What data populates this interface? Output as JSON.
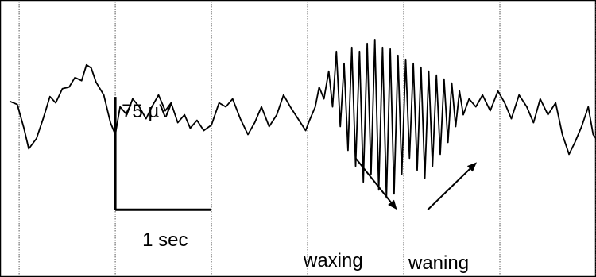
{
  "chart_data": {
    "type": "line",
    "title": "",
    "xlabel": "",
    "ylabel": "",
    "grid": "vertical dotted lines, one per second",
    "colors": {
      "trace": "#000000",
      "grid": "#555555",
      "frame": "#000000"
    },
    "x_units": "sec",
    "y_units": "µV",
    "xlim": [
      -1.1,
      5.0
    ],
    "ylim": [
      -210,
      140
    ],
    "time_per_grid": 1,
    "scale_bar": {
      "amplitude_label": "75 µV",
      "amplitude_value": 75,
      "time_label": "1 sec",
      "time_value": 1
    },
    "annotations": [
      {
        "text": "waxing",
        "arrow_from": [
          2.5,
          -60
        ],
        "arrow_to": [
          2.93,
          -125
        ]
      },
      {
        "text": "waning",
        "arrow_from": [
          3.25,
          -125
        ],
        "arrow_to": [
          3.76,
          -65
        ]
      }
    ],
    "series": [
      {
        "values": [
          [
            -1.1,
            12
          ],
          [
            -1.02,
            8
          ],
          [
            -0.95,
            -22
          ],
          [
            -0.9,
            -48
          ],
          [
            -0.82,
            -35
          ],
          [
            -0.75,
            -10
          ],
          [
            -0.68,
            18
          ],
          [
            -0.62,
            10
          ],
          [
            -0.55,
            28
          ],
          [
            -0.48,
            30
          ],
          [
            -0.42,
            42
          ],
          [
            -0.35,
            38
          ],
          [
            -0.3,
            58
          ],
          [
            -0.25,
            54
          ],
          [
            -0.2,
            36
          ],
          [
            -0.12,
            20
          ],
          [
            -0.05,
            -15
          ],
          [
            0.0,
            -30
          ],
          [
            0.05,
            5
          ],
          [
            0.12,
            -5
          ],
          [
            0.18,
            15
          ],
          [
            0.25,
            5
          ],
          [
            0.32,
            -10
          ],
          [
            0.38,
            5
          ],
          [
            0.45,
            20
          ],
          [
            0.52,
            0
          ],
          [
            0.58,
            10
          ],
          [
            0.65,
            -15
          ],
          [
            0.72,
            -5
          ],
          [
            0.78,
            -22
          ],
          [
            0.85,
            -12
          ],
          [
            0.92,
            -25
          ],
          [
            1.0,
            -18
          ],
          [
            1.08,
            10
          ],
          [
            1.15,
            5
          ],
          [
            1.22,
            15
          ],
          [
            1.3,
            -10
          ],
          [
            1.38,
            -30
          ],
          [
            1.45,
            -15
          ],
          [
            1.52,
            5
          ],
          [
            1.6,
            -20
          ],
          [
            1.68,
            -5
          ],
          [
            1.75,
            20
          ],
          [
            1.82,
            5
          ],
          [
            1.9,
            -10
          ],
          [
            1.98,
            -25
          ],
          [
            2.02,
            -12
          ],
          [
            2.08,
            5
          ],
          [
            2.12,
            30
          ],
          [
            2.17,
            15
          ],
          [
            2.22,
            50
          ],
          [
            2.26,
            5
          ],
          [
            2.3,
            75
          ],
          [
            2.34,
            -20
          ],
          [
            2.38,
            60
          ],
          [
            2.42,
            -50
          ],
          [
            2.46,
            80
          ],
          [
            2.5,
            -70
          ],
          [
            2.54,
            75
          ],
          [
            2.58,
            -90
          ],
          [
            2.62,
            85
          ],
          [
            2.66,
            -80
          ],
          [
            2.7,
            90
          ],
          [
            2.74,
            -100
          ],
          [
            2.78,
            80
          ],
          [
            2.82,
            -110
          ],
          [
            2.86,
            78
          ],
          [
            2.9,
            -105
          ],
          [
            2.94,
            70
          ],
          [
            2.98,
            -80
          ],
          [
            3.02,
            65
          ],
          [
            3.06,
            -60
          ],
          [
            3.1,
            60
          ],
          [
            3.14,
            -75
          ],
          [
            3.18,
            55
          ],
          [
            3.22,
            -85
          ],
          [
            3.26,
            50
          ],
          [
            3.3,
            -70
          ],
          [
            3.34,
            45
          ],
          [
            3.38,
            -55
          ],
          [
            3.42,
            40
          ],
          [
            3.46,
            -40
          ],
          [
            3.5,
            35
          ],
          [
            3.54,
            -20
          ],
          [
            3.58,
            25
          ],
          [
            3.62,
            -5
          ],
          [
            3.68,
            15
          ],
          [
            3.75,
            5
          ],
          [
            3.82,
            20
          ],
          [
            3.9,
            0
          ],
          [
            3.98,
            25
          ],
          [
            4.05,
            10
          ],
          [
            4.12,
            -10
          ],
          [
            4.2,
            20
          ],
          [
            4.28,
            5
          ],
          [
            4.35,
            -15
          ],
          [
            4.42,
            15
          ],
          [
            4.5,
            -5
          ],
          [
            4.58,
            10
          ],
          [
            4.65,
            -30
          ],
          [
            4.72,
            -55
          ],
          [
            4.78,
            -40
          ],
          [
            4.85,
            -20
          ],
          [
            4.92,
            5
          ],
          [
            4.97,
            -30
          ],
          [
            5.0,
            -35
          ]
        ]
      }
    ]
  }
}
